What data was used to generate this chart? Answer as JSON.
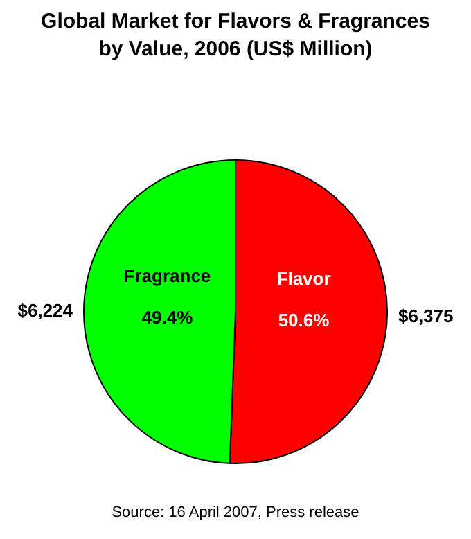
{
  "chart_data": {
    "type": "pie",
    "title": "Global Market for Flavors & Fragrances by Value, 2006 (US$ Million)",
    "categories": [
      "Flavor",
      "Fragrance"
    ],
    "values": [
      6375,
      6224
    ],
    "colors": [
      "#ff0000",
      "#00ff00"
    ],
    "value_labels": [
      "$6,375",
      "$6,224"
    ],
    "annotations": [
      "50.6%",
      "49.4%",
      "Source: 16 April 2007, Press release"
    ],
    "legend": false
  }
}
